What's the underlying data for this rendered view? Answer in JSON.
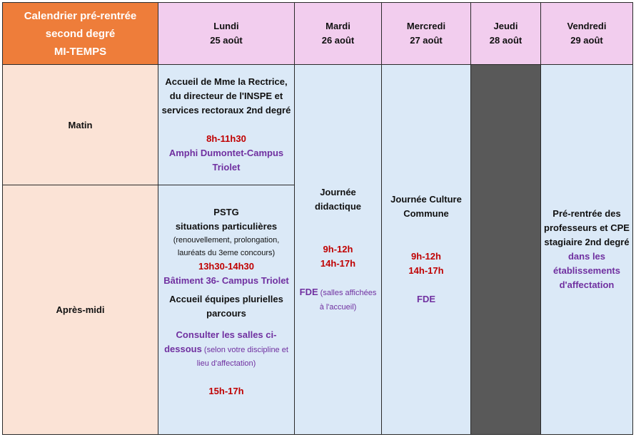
{
  "header": {
    "title_lines": [
      "Calendrier pré-rentrée",
      "second degré",
      "MI-TEMPS"
    ]
  },
  "days": [
    {
      "name": "Lundi",
      "date": "25 août"
    },
    {
      "name": "Mardi",
      "date": "26 août"
    },
    {
      "name": "Mercredi",
      "date": "27 août"
    },
    {
      "name": "Jeudi",
      "date": "28 août"
    },
    {
      "name": "Vendredi",
      "date": "29 août"
    }
  ],
  "rows": {
    "morning": "Matin",
    "afternoon": "Après-midi"
  },
  "monday_morning": {
    "lines": [
      "Accueil de Mme la Rectrice,",
      "du directeur de l'INSPE et",
      "services rectoraux 2nd degré"
    ],
    "time": "8h-11h30",
    "place_lines": [
      "Amphi Dumontet-Campus",
      "Triolet"
    ]
  },
  "monday_afternoon": {
    "title1": "PSTG",
    "title2": "situations particulières",
    "note_lines": [
      "(renouvellement, prolongation,",
      "lauréats du 3eme concours)"
    ],
    "time1": "13h30-14h30",
    "place1": "Bâtiment 36- Campus Triolet",
    "welcome_lines": [
      "Accueil équipes plurielles",
      "parcours"
    ],
    "consult_line1": "Consulter les salles ci-",
    "consult_line2": "dessous",
    "consult_note1": " (selon votre discipline et",
    "consult_note2": "lieu d'affectation)",
    "time2": "15h-17h"
  },
  "tuesday": {
    "lines": [
      "Journée",
      "didactique"
    ],
    "time1": "9h-12h",
    "time2": "14h-17h",
    "place": "FDE",
    "place_note1": " (salles affichées",
    "place_note2": "à l'accueil)"
  },
  "wednesday": {
    "lines": [
      "Journée Culture",
      "Commune"
    ],
    "time1": "9h-12h",
    "time2": "14h-17h",
    "place": "FDE"
  },
  "friday": {
    "lines": [
      "Pré-rentrée des",
      "professeurs et CPE",
      "stagiaire 2nd degré"
    ],
    "place_lines": [
      "dans les",
      "établissements",
      "d'affectation"
    ]
  },
  "colors": {
    "title_bg": "#ee7d3a",
    "day_header_bg": "#f2cdee",
    "row_label_bg": "#fbe3d6",
    "body_bg": "#dbe9f7",
    "closed_bg": "#595959",
    "time_color": "#c00000",
    "place_color": "#7030a0"
  }
}
